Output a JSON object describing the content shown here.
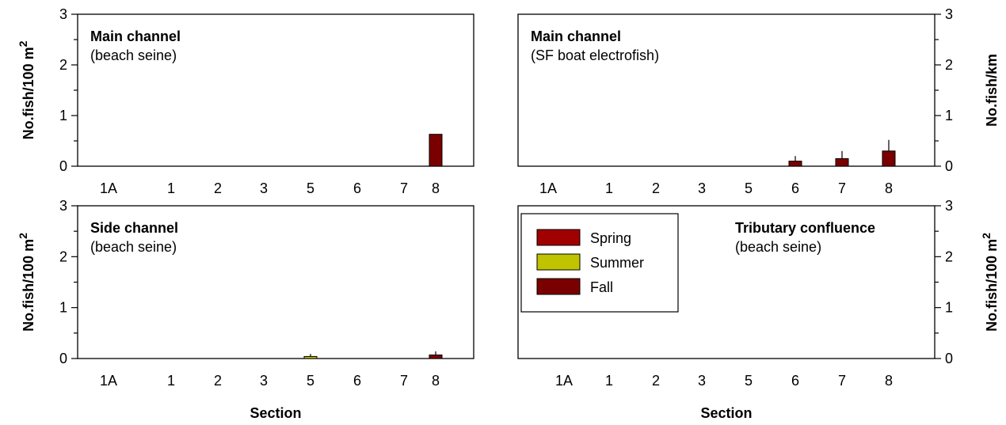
{
  "series_colors": {
    "Spring": "#a00000",
    "Summer": "#bfc300",
    "Fall": "#7a0000"
  },
  "legend": {
    "entries": [
      "Spring",
      "Summer",
      "Fall"
    ]
  },
  "chart_data": [
    {
      "type": "bar",
      "title": "Main channel",
      "subtitle": "(beach seine)",
      "xlabel": "",
      "ylabel": "No.fish/100 m",
      "ylabel_sup": "2",
      "ylabel_side": "left",
      "categories": [
        "1A",
        "1",
        "2",
        "3",
        "5",
        "6",
        "7",
        "8"
      ],
      "ylim": [
        0,
        3
      ],
      "yticks": [
        "0",
        "1",
        "2",
        "3"
      ],
      "series": [
        {
          "name": "Spring",
          "values": [
            0,
            0,
            0,
            0,
            0,
            0,
            0,
            0
          ],
          "errors": [
            0,
            0,
            0,
            0,
            0,
            0,
            0,
            0
          ]
        },
        {
          "name": "Summer",
          "values": [
            0,
            0,
            0,
            0,
            0,
            0,
            0,
            0
          ],
          "errors": [
            0,
            0,
            0,
            0,
            0,
            0,
            0,
            0
          ]
        },
        {
          "name": "Fall",
          "values": [
            0,
            0,
            0,
            0,
            0,
            0,
            0,
            0.63
          ],
          "errors": [
            0,
            0,
            0,
            0,
            0,
            0,
            0,
            0
          ]
        }
      ]
    },
    {
      "type": "bar",
      "title": "Main channel",
      "subtitle": "(SF boat electrofish)",
      "xlabel": "",
      "ylabel": "No.fish/km",
      "ylabel_sup": "",
      "ylabel_side": "right",
      "categories": [
        "1A",
        "1",
        "2",
        "3",
        "5",
        "6",
        "7",
        "8"
      ],
      "ylim": [
        0,
        3
      ],
      "yticks": [
        "0",
        "1",
        "2",
        "3"
      ],
      "series": [
        {
          "name": "Spring",
          "values": [
            0,
            0,
            0,
            0,
            0,
            0,
            0,
            0
          ],
          "errors": [
            0,
            0,
            0,
            0,
            0,
            0,
            0,
            0
          ]
        },
        {
          "name": "Summer",
          "values": [
            0,
            0,
            0,
            0,
            0,
            0,
            0,
            0
          ],
          "errors": [
            0,
            0,
            0,
            0,
            0,
            0,
            0,
            0
          ]
        },
        {
          "name": "Fall",
          "values": [
            0,
            0,
            0,
            0,
            0,
            0.1,
            0.15,
            0.3
          ],
          "errors": [
            0,
            0,
            0,
            0,
            0,
            0.1,
            0.15,
            0.22
          ]
        }
      ]
    },
    {
      "type": "bar",
      "title": "Side channel",
      "subtitle": "(beach seine)",
      "xlabel": "Section",
      "ylabel": "No.fish/100 m",
      "ylabel_sup": "2",
      "ylabel_side": "left",
      "categories": [
        "1A",
        "1",
        "2",
        "3",
        "5",
        "6",
        "7",
        "8"
      ],
      "ylim": [
        0,
        3
      ],
      "yticks": [
        "0",
        "1",
        "2",
        "3"
      ],
      "series": [
        {
          "name": "Spring",
          "values": [
            0,
            0,
            0,
            0,
            0,
            0,
            0,
            0
          ],
          "errors": [
            0,
            0,
            0,
            0,
            0,
            0,
            0,
            0
          ]
        },
        {
          "name": "Summer",
          "values": [
            0,
            0,
            0,
            0,
            0.04,
            0,
            0,
            0
          ],
          "errors": [
            0,
            0,
            0,
            0,
            0.05,
            0,
            0,
            0
          ]
        },
        {
          "name": "Fall",
          "values": [
            0,
            0,
            0,
            0,
            0,
            0,
            0,
            0.07
          ],
          "errors": [
            0,
            0,
            0,
            0,
            0,
            0,
            0,
            0.07
          ]
        }
      ]
    },
    {
      "type": "bar",
      "title": "Tributary confluence",
      "subtitle": "(beach seine)",
      "xlabel": "Section",
      "ylabel": "No.fish/100 m",
      "ylabel_sup": "2",
      "ylabel_side": "right",
      "categories": [
        "1A",
        "1",
        "2",
        "3",
        "5",
        "6",
        "7",
        "8"
      ],
      "ylim": [
        0,
        3
      ],
      "yticks": [
        "0",
        "1",
        "2",
        "3"
      ],
      "series": [
        {
          "name": "Spring",
          "values": [
            0,
            0,
            0,
            0,
            0,
            0,
            0,
            0
          ],
          "errors": [
            0,
            0,
            0,
            0,
            0,
            0,
            0,
            0
          ]
        },
        {
          "name": "Summer",
          "values": [
            0,
            0,
            0,
            0,
            0,
            0,
            0,
            0
          ],
          "errors": [
            0,
            0,
            0,
            0,
            0,
            0,
            0,
            0
          ]
        },
        {
          "name": "Fall",
          "values": [
            0,
            0,
            0,
            0,
            0,
            0,
            0,
            0
          ],
          "errors": [
            0,
            0,
            0,
            0,
            0,
            0,
            0,
            0
          ]
        }
      ]
    }
  ]
}
